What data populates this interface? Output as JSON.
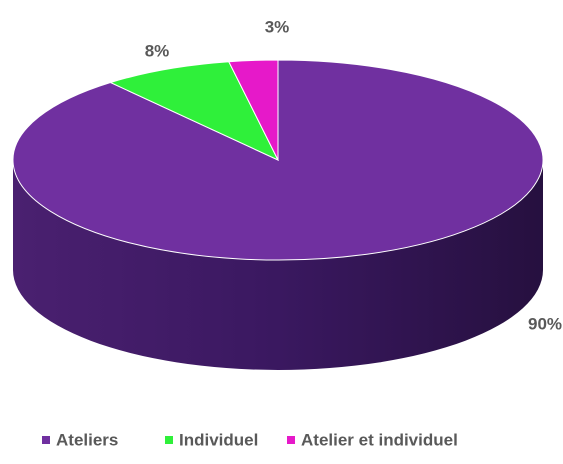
{
  "chart_data": {
    "type": "pie",
    "categories": [
      "Ateliers",
      "Individuel",
      "Atelier et individuel"
    ],
    "values": [
      90,
      8,
      3
    ],
    "value_labels": [
      "90%",
      "8%",
      "3%"
    ],
    "colors": [
      "#7030a0",
      "#2ff03a",
      "#e619c9"
    ],
    "legend": "bottom"
  }
}
